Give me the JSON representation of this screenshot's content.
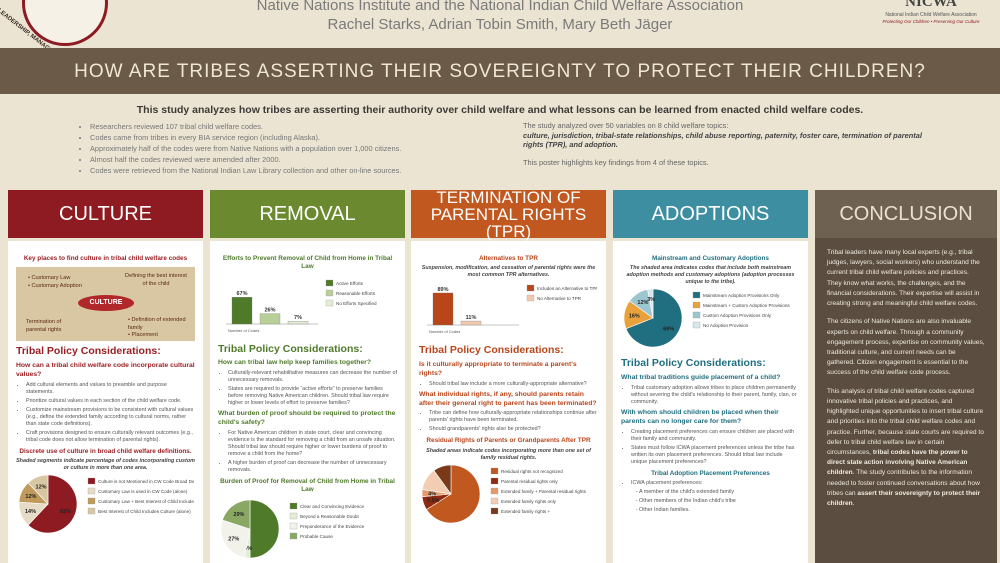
{
  "header": {
    "line1": "Native Nations Institute and the National Indian Child Welfare Association",
    "authors": "Rachel Starks, Adrian Tobin Smith, Mary Beth Jäger",
    "logo_left": "LEADERSHIP, MANAGEMENT, AND",
    "logo_right": "NICWA",
    "logo_right_sub1": "National Indian Child Welfare Association",
    "logo_right_sub2": "Protecting Our Children • Preserving Our Culture"
  },
  "title": "HOW ARE TRIBES ASSERTING THEIR SOVEREIGNTY TO PROTECT THEIR CHILDREN?",
  "intro": {
    "lead": "This study analyzes how tribes are asserting their authority over child welfare and what lessons can be learned from enacted child welfare codes.",
    "bullets": [
      "Researchers reviewed 107 tribal child welfare codes.",
      "Codes came from tribes in every BIA service region (including Alaska).",
      "Approximately half of the codes were from Native Nations with a population over 1,000 citizens.",
      "Almost half the codes reviewed were amended after 2000.",
      "Codes were retrieved from the National Indian Law Library collection and other on-line sources."
    ],
    "right1": "The study analyzed over 50 variables on 8 child welfare topics:",
    "right2": "culture, jurisdiction, tribal-state relationships, child abuse reporting, paternity, foster care, termination of parental rights (TPR), and adoption.",
    "right3": "This poster highlights key findings from 4 of these topics."
  },
  "columns": [
    {
      "heading": "CULTURE",
      "chart1_title": "Key places to find culture in tribal child welfare codes",
      "diagram": [
        "Customary Law",
        "Customary Adoption",
        "Defining the best interest of the child",
        "CULTURE",
        "Termination of parental rights",
        "Definition of extended family",
        "Placement"
      ],
      "policy": "Tribal Policy Considerations:",
      "q1": "How can a tribal child welfare code incorporate cultural values?",
      "b1": [
        "Add cultural elements and values to preamble and purpose statements.",
        "Prioritize cultural values in each section of the child welfare code.",
        "Customize mainstream provisions to be consistent with cultural values (e.g., define the extended family according to cultural norms, rather than state code definitions).",
        "Craft provisions designed to ensure culturally relevant outcomes (e.g., tribal code does not allow termination of parental rights)."
      ],
      "chart2_title": "Discrete use of culture in broad child welfare definitions.",
      "chart2_note": "Shaded segments indicate percentage of codes incorporating custom or culture in more than one area.",
      "chart2": {
        "type": "pie",
        "values": [
          62,
          14,
          12,
          12
        ],
        "value_labels": [
          "62%",
          "14%",
          "12%",
          "12%"
        ],
        "legend": [
          "Culture is not Mentioned in CW Code Broad Definitions",
          "Customary Law is used in CW Code (alone)",
          "Customary Law + Best Interest of Child Includes Culture",
          "Best Interest of Child Includes Culture (alone)"
        ],
        "colors": [
          "#8e1b22",
          "#e6dcc6",
          "#c09a5a",
          "#d8c7a2"
        ]
      }
    },
    {
      "heading": "REMOVAL",
      "chart1_title": "Efforts to Prevent Removal of Child from Home in Tribal Law",
      "chart1": {
        "type": "bar",
        "values": [
          67,
          26,
          7
        ],
        "value_labels": [
          "67%",
          "26%",
          "7%"
        ],
        "legend": [
          "Active Efforts",
          "Reasonable Efforts",
          "No Efforts Specified"
        ],
        "colors": [
          "#4f7a2a",
          "#b9cf9a",
          "#e3ecd5"
        ],
        "axis_label": "Number of Codes"
      },
      "policy": "Tribal Policy Considerations:",
      "q1": "How can tribal law help keep families together?",
      "b1": [
        "Culturally-relevant rehabilitative measures can decrease the number of unnecessary removals.",
        "States are required to provide “active efforts” to preserve families before removing Native American children. Should tribal law require higher or lower levels of effort to preserve families?"
      ],
      "q2": "What burden of proof should be required to protect the child's safety?",
      "b2": [
        "For Native American children in state court, clear and convincing evidence is the standard for removing a child from an unsafe situation. Should tribal law should require higher or lower burdens of proof to remove a child from the home?",
        "A higher burden of proof can decrease the number of unnecessary removals."
      ],
      "chart2_title": "Burden of Proof for Removal of Child from Home in Tribal Law",
      "chart2": {
        "type": "pie",
        "values": [
          50,
          3,
          27,
          20
        ],
        "value_labels": [
          null,
          "3%",
          "27%",
          "20%"
        ],
        "legend": [
          "Clear and Convincing Evidence",
          "Beyond a Reasonable Doubt",
          "Preponderance of the Evidence",
          "Probable Cause"
        ],
        "colors": [
          "#4f7a2a",
          "#e3ecd5",
          "#f2f2ea",
          "#8aa864"
        ]
      }
    },
    {
      "heading": "TERMINATION OF PARENTAL RIGHTS (TPR)",
      "chart1_title": "Alternatives to TPR",
      "chart1_note": "Suspension, modification, and cessation of parental rights were the most common TPR alternatives.",
      "chart1": {
        "type": "bar",
        "values": [
          89,
          11
        ],
        "value_labels": [
          "89%",
          "11%"
        ],
        "legend": [
          "Includes an Alternative to TPR",
          "No Alternative to TPR"
        ],
        "colors": [
          "#b9461a",
          "#f0c9ae"
        ],
        "axis_label": "Number of Codes"
      },
      "policy": "Tribal Policy Considerations:",
      "q1": "Is it culturally appropriate to terminate a parent's rights?",
      "b1": [
        "Should tribal law include a more culturally-appropriate alternative?"
      ],
      "q2": "What individual rights, if any, should parents retain after their general right to parent has been terminated?",
      "b2": [
        "Tribe can define how culturally-appropriate relationships continue after parents' rights have been terminated.",
        "Should grandparents' rights also be protected?"
      ],
      "chart2_title": "Residual Rights of Parents or Grandparents After TPR",
      "chart2_note": "Shaded areas indicate codes incorporating more than one set of family residual rights.",
      "chart2": {
        "type": "pie",
        "values": [
          66,
          7.5,
          4,
          12.5,
          10
        ],
        "value_labels": [
          null,
          "7.5%",
          "4%",
          null,
          null
        ],
        "legend": [
          "Residual rights not recognized",
          "Parental residual rights only",
          "Extended family + Parental residual rights",
          "Extended family rights only",
          "Extended family rights +"
        ],
        "colors": [
          "#c0581f",
          "#8e2a10",
          "#e59a6a",
          "#f3cdb3",
          "#7a3a1a"
        ]
      }
    },
    {
      "heading": "ADOPTIONS",
      "chart1_title": "Mainstream and Customary Adoptions",
      "chart1_note": "The shaded area indicates codes that include both mainstream adoption methods and customary adoptions (adoption processes unique to the tribe).",
      "chart1": {
        "type": "pie",
        "values": [
          69,
          16,
          12,
          3
        ],
        "value_labels": [
          "69%",
          "16%",
          "12%",
          "3%"
        ],
        "legend": [
          "Mainstream Adoption Provisions Only",
          "Mainstream + Custom Adoption Provisions",
          "Custom Adoption Provisions Only",
          "No Adoption Provision"
        ],
        "colors": [
          "#1f6f80",
          "#e9a23b",
          "#9cc6cf",
          "#d6e6ea"
        ]
      },
      "policy": "Tribal Policy Considerations:",
      "q1": "What tribal traditions guide placement of a child?",
      "b1": [
        "Tribal customary adoption allows tribes to place children permanently without severing the child's relationship to their parent, family, clan, or community."
      ],
      "q2": "With whom should children be placed when their parents can no longer care for them?",
      "b2": [
        "Creating placement preferences can ensure children are placed with their family and community.",
        "States must follow ICWA placement preferences unless the tribe has written its own placement preferences. Should tribal law include unique placement preferences?"
      ],
      "chart2_title": "Tribal Adoption Placement Preferences",
      "icwa": "ICWA placement preferences:",
      "icwa_list": [
        "A member of the child's extended family",
        "Other members of the Indian child's tribe",
        "Other Indian families."
      ]
    }
  ],
  "conclusion": {
    "heading": "CONCLUSION",
    "p1": "Tribal leaders have many local experts (e.g., tribal judges, lawyers, social workers) who understand the current tribal child welfare policies and practices. They know what works, the challenges, and the financial considerations. Their expertise will assist in creating strong and meaningful child welfare codes.",
    "p2": "The citizens of Native Nations are also invaluable experts on child welfare. Through a community engagement process, expertise on community values, traditional culture, and current needs can be gathered. Citizen engagement is essential to the success of the child welfare code process.",
    "p3": [
      "This analysis of tribal child welfare codes captured innovative tribal policies and practices, and highlighted unique opportunities to insert tribal culture and priorities into the tribal child welfare codes and practice. Further, because state courts are required to defer to tribal child welfare law in certain circumstances, ",
      "tribal codes have the power to direct state action involving Native American children",
      ". The study contributes to the information needed to foster continued conversations about how tribes can ",
      "assert their sovereignty to protect their children",
      "."
    ]
  }
}
